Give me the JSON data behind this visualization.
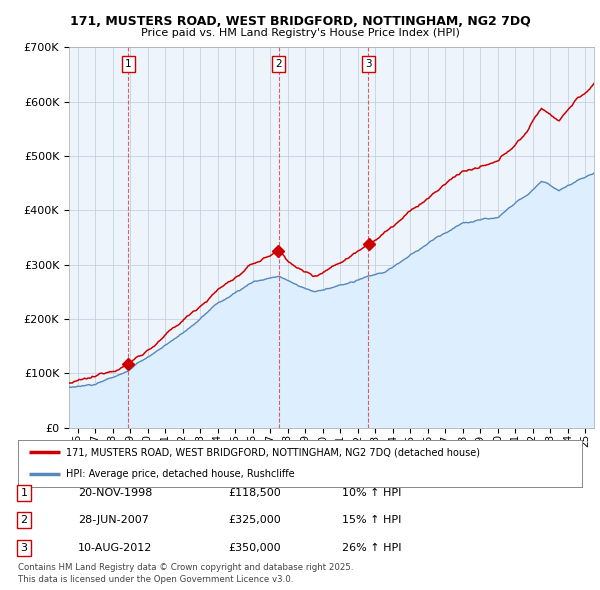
{
  "title": "171, MUSTERS ROAD, WEST BRIDGFORD, NOTTINGHAM, NG2 7DQ",
  "subtitle": "Price paid vs. HM Land Registry's House Price Index (HPI)",
  "legend_line1": "171, MUSTERS ROAD, WEST BRIDGFORD, NOTTINGHAM, NG2 7DQ (detached house)",
  "legend_line2": "HPI: Average price, detached house, Rushcliffe",
  "footer1": "Contains HM Land Registry data © Crown copyright and database right 2025.",
  "footer2": "This data is licensed under the Open Government Licence v3.0.",
  "transactions": [
    {
      "label": "1",
      "date": "20-NOV-1998",
      "price": "£118,500",
      "hpi": "10% ↑ HPI",
      "year": 1998.89,
      "value": 118500
    },
    {
      "label": "2",
      "date": "28-JUN-2007",
      "price": "£325,000",
      "hpi": "15% ↑ HPI",
      "year": 2007.49,
      "value": 325000
    },
    {
      "label": "3",
      "date": "10-AUG-2012",
      "price": "£350,000",
      "hpi": "26% ↑ HPI",
      "year": 2012.61,
      "value": 350000
    }
  ],
  "red_line_color": "#cc0000",
  "blue_line_color": "#5588bb",
  "fill_color": "#ddeeff",
  "background_color": "#ffffff",
  "chart_bg_color": "#eef4fb",
  "grid_color": "#bbccdd",
  "ylim": [
    0,
    700000
  ],
  "yticks": [
    0,
    100000,
    200000,
    300000,
    400000,
    500000,
    600000,
    700000
  ],
  "xlim": [
    1995.5,
    2025.5
  ],
  "xticks": [
    1996,
    1997,
    1998,
    1999,
    2000,
    2001,
    2002,
    2003,
    2004,
    2005,
    2006,
    2007,
    2008,
    2009,
    2010,
    2011,
    2012,
    2013,
    2014,
    2015,
    2016,
    2017,
    2018,
    2019,
    2020,
    2021,
    2022,
    2023,
    2024,
    2025
  ],
  "xtick_labels": [
    "96",
    "97",
    "98",
    "99",
    "00",
    "01",
    "02",
    "03",
    "04",
    "05",
    "06",
    "07",
    "08",
    "09",
    "10",
    "11",
    "12",
    "13",
    "14",
    "15",
    "16",
    "17",
    "18",
    "19",
    "20",
    "21",
    "22",
    "23",
    "24",
    "25"
  ]
}
